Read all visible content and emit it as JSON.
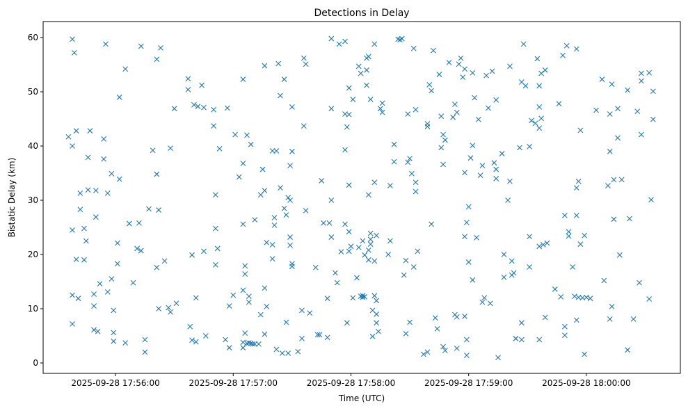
{
  "chart_data": {
    "type": "scatter",
    "title": "Detections in Delay",
    "xlabel": "Time (UTC)",
    "ylabel": "Bistatic Delay (km)",
    "x_units": "seconds after 2025-09-28 17:55:00",
    "xlim": [
      23.1,
      347.9
    ],
    "ylim": [
      -1.92,
      62.95
    ],
    "grid": false,
    "marker": "x",
    "color": "#1f77b4",
    "x_ticks": [
      {
        "value": 60,
        "label": "2025-09-28 17:56:00"
      },
      {
        "value": 120,
        "label": "2025-09-28 17:57:00"
      },
      {
        "value": 180,
        "label": "2025-09-28 17:58:00"
      },
      {
        "value": 240,
        "label": "2025-09-28 17:59:00"
      },
      {
        "value": 300,
        "label": "2025-09-28 18:00:00"
      }
    ],
    "y_ticks": [
      {
        "value": 0,
        "label": "0"
      },
      {
        "value": 10,
        "label": "10"
      },
      {
        "value": 20,
        "label": "20"
      },
      {
        "value": 30,
        "label": "30"
      },
      {
        "value": 40,
        "label": "40"
      },
      {
        "value": 50,
        "label": "50"
      },
      {
        "value": 60,
        "label": "60"
      }
    ],
    "points": [
      [
        36,
        41.7
      ],
      [
        38,
        40
      ],
      [
        38,
        59.7
      ],
      [
        39,
        57.2
      ],
      [
        38,
        24.5
      ],
      [
        38,
        12.5
      ],
      [
        38,
        7.2
      ],
      [
        40,
        42.8
      ],
      [
        40,
        19.1
      ],
      [
        41,
        11.9
      ],
      [
        42,
        28.3
      ],
      [
        42,
        31.3
      ],
      [
        44,
        24.8
      ],
      [
        44,
        19
      ],
      [
        45,
        22.5
      ],
      [
        46,
        31.9
      ],
      [
        46,
        37.9
      ],
      [
        47,
        42.8
      ],
      [
        49,
        10.5
      ],
      [
        49,
        12.7
      ],
      [
        50,
        31.8
      ],
      [
        50,
        26.9
      ],
      [
        49,
        6.1
      ],
      [
        51,
        5.8
      ],
      [
        52,
        14.6
      ],
      [
        54,
        41.3
      ],
      [
        54,
        37.6
      ],
      [
        55,
        58.8
      ],
      [
        56,
        13.1
      ],
      [
        56,
        31.3
      ],
      [
        58,
        34.9
      ],
      [
        58,
        15.5
      ],
      [
        59,
        9.7
      ],
      [
        59,
        4
      ],
      [
        59,
        5.6
      ],
      [
        61,
        22.1
      ],
      [
        61,
        18.3
      ],
      [
        62,
        33.9
      ],
      [
        62,
        49
      ],
      [
        65,
        54.2
      ],
      [
        65,
        3.7
      ],
      [
        67,
        25.7
      ],
      [
        69,
        14.8
      ],
      [
        71,
        21.1
      ],
      [
        72,
        25.8
      ],
      [
        73,
        58.4
      ],
      [
        73,
        20.7
      ],
      [
        75,
        4.3
      ],
      [
        75,
        2
      ],
      [
        77,
        28.4
      ],
      [
        79,
        39.2
      ],
      [
        81,
        56
      ],
      [
        81,
        17.6
      ],
      [
        81,
        34.8
      ],
      [
        82,
        28.2
      ],
      [
        82,
        10
      ],
      [
        83,
        58.1
      ],
      [
        85,
        18.8
      ],
      [
        87,
        10.2
      ],
      [
        88,
        39.6
      ],
      [
        88,
        9.4
      ],
      [
        91,
        11
      ],
      [
        90,
        46.9
      ],
      [
        97,
        52.4
      ],
      [
        97,
        50.4
      ],
      [
        98,
        6.7
      ],
      [
        99,
        19.9
      ],
      [
        99,
        4.2
      ],
      [
        100,
        47.6
      ],
      [
        101,
        12
      ],
      [
        101,
        3.9
      ],
      [
        102,
        47.3
      ],
      [
        104,
        51.2
      ],
      [
        105,
        47.1
      ],
      [
        105,
        20.6
      ],
      [
        106,
        5
      ],
      [
        110,
        46.7
      ],
      [
        110,
        43.7
      ],
      [
        111,
        24.8
      ],
      [
        111,
        31
      ],
      [
        111,
        18.1
      ],
      [
        112,
        21.1
      ],
      [
        113,
        39.5
      ],
      [
        116,
        4.3
      ],
      [
        117,
        47
      ],
      [
        118,
        10.5
      ],
      [
        118,
        2.8
      ],
      [
        120,
        12.5
      ],
      [
        121,
        42.1
      ],
      [
        123,
        34.3
      ],
      [
        125,
        52.3
      ],
      [
        125,
        25.6
      ],
      [
        125,
        13.4
      ],
      [
        125,
        2.8
      ],
      [
        125,
        3.8
      ],
      [
        125,
        36.8
      ],
      [
        126,
        17.9
      ],
      [
        126,
        16.4
      ],
      [
        126,
        5.5
      ],
      [
        127,
        42
      ],
      [
        127,
        3.6
      ],
      [
        128,
        12.3
      ],
      [
        128,
        3.7
      ],
      [
        128,
        11.2
      ],
      [
        129,
        3.6
      ],
      [
        129,
        40.3
      ],
      [
        130,
        3.5
      ],
      [
        131,
        26.4
      ],
      [
        131,
        3.5
      ],
      [
        133,
        3.5
      ],
      [
        134,
        8.9
      ],
      [
        134,
        31
      ],
      [
        135,
        35.7
      ],
      [
        136,
        13.8
      ],
      [
        136,
        5.3
      ],
      [
        136,
        31.8
      ],
      [
        137,
        10.4
      ],
      [
        136,
        54.8
      ],
      [
        137,
        22.2
      ],
      [
        140,
        21.8
      ],
      [
        140,
        39.1
      ],
      [
        140,
        19.2
      ],
      [
        141,
        26.8
      ],
      [
        141,
        25.4
      ],
      [
        142,
        39.1
      ],
      [
        142,
        2.5
      ],
      [
        143,
        55.2
      ],
      [
        144,
        49.3
      ],
      [
        144,
        32.3
      ],
      [
        145,
        1.8
      ],
      [
        146,
        28.5
      ],
      [
        146,
        52.3
      ],
      [
        147,
        7.5
      ],
      [
        147,
        27.3
      ],
      [
        148,
        1.8
      ],
      [
        148,
        30.5
      ],
      [
        149,
        21.7
      ],
      [
        149,
        30
      ],
      [
        149,
        36.4
      ],
      [
        149,
        23.2
      ],
      [
        150,
        17.8
      ],
      [
        150,
        18.3
      ],
      [
        150,
        39
      ],
      [
        150,
        47.2
      ],
      [
        153,
        2.1
      ],
      [
        155,
        9.7
      ],
      [
        155,
        4.5
      ],
      [
        156,
        43.7
      ],
      [
        156,
        56.2
      ],
      [
        157,
        55.1
      ],
      [
        157,
        28.1
      ],
      [
        159,
        9.2
      ],
      [
        162,
        17.6
      ],
      [
        163,
        5.2
      ],
      [
        164,
        5.2
      ],
      [
        165,
        33.6
      ],
      [
        166,
        25.8
      ],
      [
        168,
        11.9
      ],
      [
        168,
        4.7
      ],
      [
        169,
        25.8
      ],
      [
        170,
        59.8
      ],
      [
        170,
        30
      ],
      [
        170,
        23.2
      ],
      [
        170,
        46.9
      ],
      [
        172,
        16.6
      ],
      [
        173,
        14.8
      ],
      [
        174,
        58.8
      ],
      [
        175,
        20.5
      ],
      [
        177,
        25.6
      ],
      [
        177,
        59.3
      ],
      [
        177,
        39.3
      ],
      [
        177,
        45.9
      ],
      [
        178,
        7.4
      ],
      [
        178,
        43.5
      ],
      [
        179,
        50.7
      ],
      [
        179,
        32.8
      ],
      [
        179,
        24.2
      ],
      [
        179,
        20.6
      ],
      [
        179,
        45.8
      ],
      [
        180,
        21.5
      ],
      [
        181,
        48.6
      ],
      [
        181,
        12
      ],
      [
        183,
        15.7
      ],
      [
        184,
        21.3
      ],
      [
        184,
        54.7
      ],
      [
        185,
        12.3
      ],
      [
        185,
        53.4
      ],
      [
        186,
        12.1
      ],
      [
        186,
        12.4
      ],
      [
        186,
        22.5
      ],
      [
        187,
        12.2
      ],
      [
        187,
        19.9
      ],
      [
        188,
        56.2
      ],
      [
        188,
        54
      ],
      [
        188,
        51.2
      ],
      [
        189,
        56.5
      ],
      [
        189,
        19
      ],
      [
        189,
        20.8
      ],
      [
        189,
        31
      ],
      [
        190,
        48.6
      ],
      [
        190,
        22.8
      ],
      [
        190,
        23.9
      ],
      [
        190,
        21.9
      ],
      [
        191,
        9.7
      ],
      [
        191,
        4.9
      ],
      [
        192,
        58.8
      ],
      [
        192,
        33.3
      ],
      [
        192,
        12.4
      ],
      [
        192,
        18.8
      ],
      [
        193,
        9
      ],
      [
        193,
        7.4
      ],
      [
        193,
        23.5
      ],
      [
        193,
        11.5
      ],
      [
        194,
        5.8
      ],
      [
        195,
        46.9
      ],
      [
        196,
        46.2
      ],
      [
        196,
        47.9
      ],
      [
        199,
        20
      ],
      [
        200,
        32.7
      ],
      [
        200,
        22.5
      ],
      [
        202,
        37.1
      ],
      [
        202,
        40.3
      ],
      [
        204,
        59.7
      ],
      [
        205,
        59.6
      ],
      [
        206,
        59.8
      ],
      [
        207,
        16.2
      ],
      [
        208,
        5.4
      ],
      [
        208,
        18.9
      ],
      [
        209,
        37
      ],
      [
        209,
        45.9
      ],
      [
        210,
        7.5
      ],
      [
        210,
        37.7
      ],
      [
        211,
        34.9
      ],
      [
        212,
        58
      ],
      [
        212,
        17.7
      ],
      [
        213,
        46.7
      ],
      [
        213,
        31.6
      ],
      [
        213,
        33.3
      ],
      [
        214,
        20.6
      ],
      [
        217,
        1.6
      ],
      [
        219,
        43.6
      ],
      [
        219,
        2
      ],
      [
        219,
        44.1
      ],
      [
        220,
        51.3
      ],
      [
        221,
        25.6
      ],
      [
        221,
        50.2
      ],
      [
        222,
        57.6
      ],
      [
        223,
        8.3
      ],
      [
        224,
        6.3
      ],
      [
        225,
        53.2
      ],
      [
        226,
        45.5
      ],
      [
        226,
        39.7
      ],
      [
        227,
        42.1
      ],
      [
        227,
        36.6
      ],
      [
        227,
        3
      ],
      [
        228,
        41.1
      ],
      [
        228,
        2.3
      ],
      [
        230,
        55.4
      ],
      [
        232,
        45.3
      ],
      [
        233,
        8.9
      ],
      [
        233,
        47.7
      ],
      [
        234,
        8.5
      ],
      [
        234,
        46.2
      ],
      [
        234,
        2.7
      ],
      [
        235,
        55.1
      ],
      [
        236,
        56.2
      ],
      [
        237,
        52.7
      ],
      [
        238,
        54.2
      ],
      [
        238,
        35.1
      ],
      [
        238,
        23.3
      ],
      [
        238,
        8.6
      ],
      [
        239,
        1.4
      ],
      [
        239,
        25.9
      ],
      [
        239,
        4.3
      ],
      [
        240,
        28.8
      ],
      [
        240,
        18.6
      ],
      [
        241,
        37.8
      ],
      [
        242,
        40.1
      ],
      [
        242,
        53.5
      ],
      [
        242,
        15.3
      ],
      [
        243,
        48.9
      ],
      [
        244,
        23.1
      ],
      [
        245,
        44.9
      ],
      [
        246,
        34.6
      ],
      [
        247,
        36.4
      ],
      [
        247,
        11.2
      ],
      [
        248,
        12
      ],
      [
        249,
        53
      ],
      [
        250,
        47
      ],
      [
        251,
        11
      ],
      [
        252,
        53.8
      ],
      [
        253,
        36.9
      ],
      [
        254,
        48.5
      ],
      [
        254,
        35.7
      ],
      [
        255,
        1
      ],
      [
        254,
        34
      ],
      [
        257,
        38.6
      ],
      [
        258,
        15.8
      ],
      [
        258,
        20
      ],
      [
        260,
        30
      ],
      [
        261,
        54.7
      ],
      [
        261,
        33.5
      ],
      [
        262,
        18.8
      ],
      [
        262,
        16.2
      ],
      [
        263,
        16.6
      ],
      [
        264,
        4.5
      ],
      [
        264,
        4.5
      ],
      [
        266,
        39.7
      ],
      [
        267,
        51.8
      ],
      [
        267,
        7.4
      ],
      [
        267,
        4.3
      ],
      [
        268,
        58.8
      ],
      [
        269,
        51.1
      ],
      [
        271,
        23.3
      ],
      [
        271,
        39.9
      ],
      [
        271,
        17.7
      ],
      [
        272,
        44.7
      ],
      [
        274,
        44.2
      ],
      [
        275,
        56.1
      ],
      [
        276,
        4.3
      ],
      [
        276,
        51.1
      ],
      [
        276,
        21.5
      ],
      [
        276,
        43.3
      ],
      [
        276,
        47.2
      ],
      [
        277,
        45.1
      ],
      [
        277,
        53.4
      ],
      [
        278,
        21.8
      ],
      [
        279,
        54
      ],
      [
        279,
        8.4
      ],
      [
        280,
        22.1
      ],
      [
        284,
        13.6
      ],
      [
        286,
        47.8
      ],
      [
        287,
        12.2
      ],
      [
        288,
        56.7
      ],
      [
        289,
        27.2
      ],
      [
        289,
        6.7
      ],
      [
        289,
        5.1
      ],
      [
        290,
        58.5
      ],
      [
        291,
        24.2
      ],
      [
        291,
        23.4
      ],
      [
        293,
        17.7
      ],
      [
        294,
        12.3
      ],
      [
        295,
        7.9
      ],
      [
        295,
        27.2
      ],
      [
        295,
        57.9
      ],
      [
        295,
        32.3
      ],
      [
        296,
        12.1
      ],
      [
        296,
        33.5
      ],
      [
        297,
        42.9
      ],
      [
        297,
        21.9
      ],
      [
        298,
        12
      ],
      [
        299,
        23.5
      ],
      [
        299,
        1.6
      ],
      [
        300,
        12.1
      ],
      [
        302,
        11.9
      ],
      [
        305,
        46.6
      ],
      [
        308,
        52.3
      ],
      [
        309,
        15.2
      ],
      [
        311,
        32.7
      ],
      [
        312,
        8.1
      ],
      [
        312,
        39
      ],
      [
        312,
        45.9
      ],
      [
        313,
        10.4
      ],
      [
        313,
        51.4
      ],
      [
        314,
        26.5
      ],
      [
        314,
        33.8
      ],
      [
        316,
        41.5
      ],
      [
        316,
        46.9
      ],
      [
        317,
        19.9
      ],
      [
        318,
        33.8
      ],
      [
        321,
        2.4
      ],
      [
        321,
        50.3
      ],
      [
        322,
        26.6
      ],
      [
        324,
        8.1
      ],
      [
        326,
        46.4
      ],
      [
        327,
        14.8
      ],
      [
        328,
        52
      ],
      [
        328,
        53.4
      ],
      [
        328,
        42.1
      ],
      [
        332,
        11.8
      ],
      [
        332,
        53.5
      ],
      [
        333,
        30.1
      ],
      [
        334,
        50.1
      ],
      [
        334,
        44.9
      ]
    ]
  }
}
